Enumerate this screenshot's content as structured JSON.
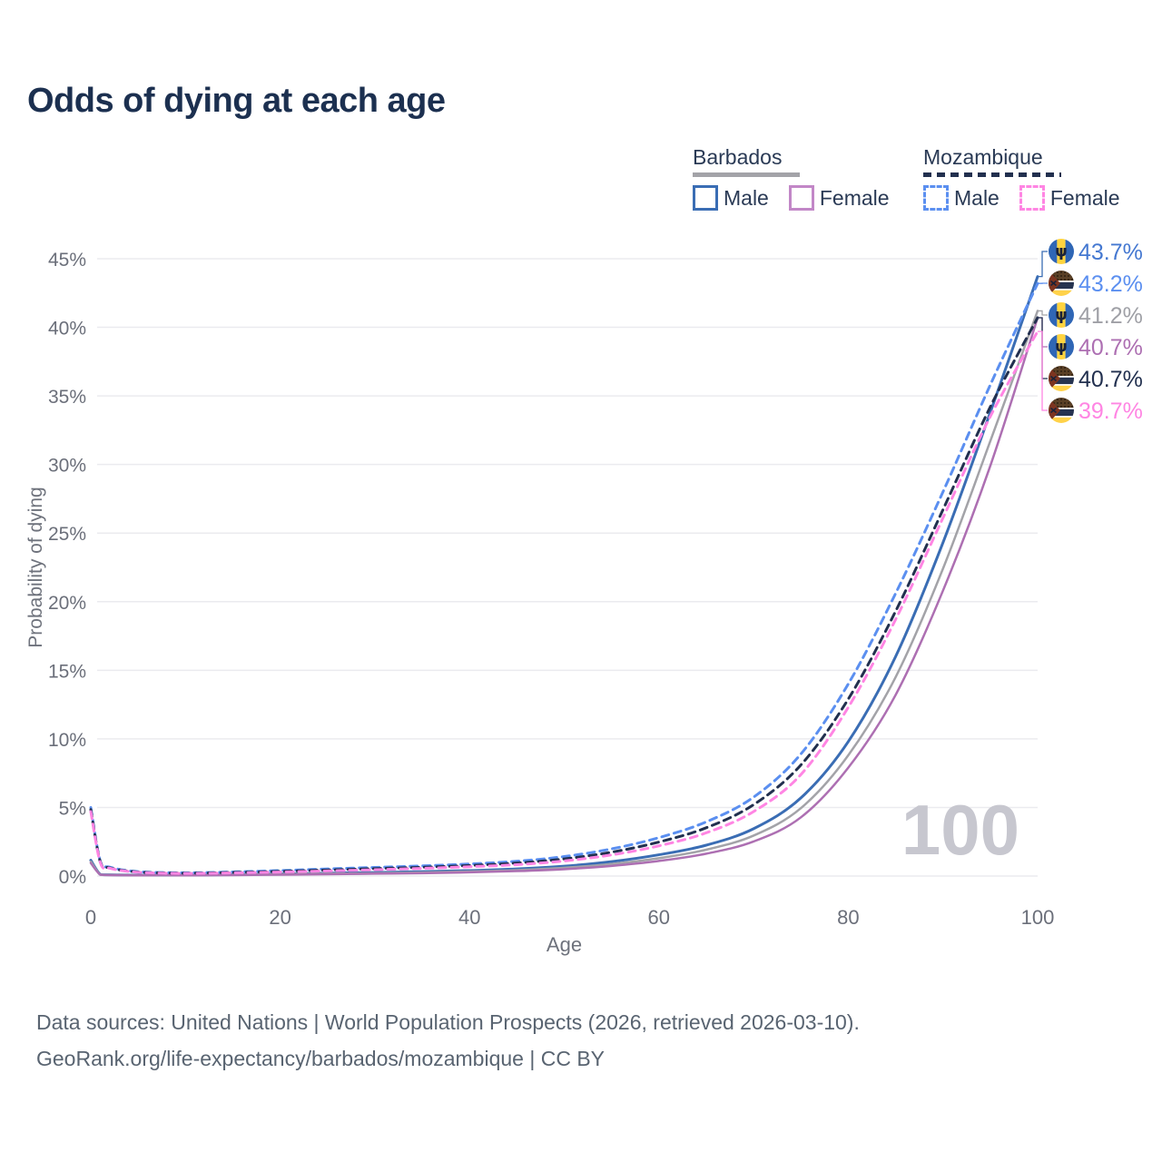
{
  "title": "Odds of dying at each age",
  "legend": {
    "groups": [
      {
        "name": "Barbados",
        "style": "solid",
        "underline_color": "#a3a3a8",
        "items": [
          {
            "label": "Male",
            "color": "#3a6db4"
          },
          {
            "label": "Female",
            "color": "#c287c7"
          }
        ]
      },
      {
        "name": "Mozambique",
        "style": "dashed",
        "underline_color": "#22304f",
        "items": [
          {
            "label": "Male",
            "color": "#5b8ff0"
          },
          {
            "label": "Female",
            "color": "#ff85e3"
          }
        ]
      }
    ]
  },
  "chart_data": {
    "type": "line",
    "xlabel": "Age",
    "ylabel": "Probability of dying",
    "x_ticks": [
      0,
      20,
      40,
      60,
      80,
      100
    ],
    "y_ticks": [
      0,
      5,
      10,
      15,
      20,
      25,
      30,
      35,
      40,
      45
    ],
    "xlim": [
      0,
      100
    ],
    "ylim": [
      0,
      47
    ],
    "grid": true,
    "hover_age_watermark": "100",
    "ages": [
      0,
      1,
      2,
      5,
      10,
      15,
      20,
      25,
      30,
      35,
      40,
      45,
      50,
      55,
      60,
      65,
      70,
      75,
      80,
      85,
      90,
      95,
      100
    ],
    "series": [
      {
        "name": "Barbados Male",
        "country": "barbados",
        "sex": "male",
        "color": "#3a6db4",
        "dashed": false,
        "width": 3,
        "values": [
          1.15,
          0.12,
          0.09,
          0.07,
          0.07,
          0.1,
          0.16,
          0.21,
          0.26,
          0.32,
          0.4,
          0.52,
          0.72,
          1.05,
          1.55,
          2.25,
          3.45,
          5.7,
          9.8,
          16.0,
          24.3,
          33.8,
          43.7
        ],
        "end_label": "43.7%",
        "end_label_color": "#4478d1",
        "label_row": 0
      },
      {
        "name": "Mozambique Male",
        "country": "mozambique",
        "sex": "male",
        "color": "#5b8ff0",
        "dashed": true,
        "width": 3,
        "values": [
          5.0,
          1.1,
          0.65,
          0.32,
          0.24,
          0.3,
          0.4,
          0.52,
          0.63,
          0.74,
          0.88,
          1.08,
          1.42,
          1.98,
          2.8,
          3.95,
          5.75,
          8.9,
          14.0,
          20.6,
          28.0,
          35.8,
          43.2
        ],
        "end_label": "43.2%",
        "end_label_color": "#5b8ff0",
        "label_row": 1
      },
      {
        "name": "Barbados",
        "country": "barbados",
        "sex": "both",
        "color": "#a3a3a8",
        "dashed": false,
        "width": 2.5,
        "values": [
          1.05,
          0.11,
          0.08,
          0.06,
          0.06,
          0.09,
          0.13,
          0.17,
          0.21,
          0.26,
          0.33,
          0.43,
          0.6,
          0.88,
          1.3,
          1.92,
          2.95,
          4.95,
          8.8,
          14.5,
          22.4,
          31.7,
          41.2
        ],
        "end_label": "41.2%",
        "end_label_color": "#9fa0a6",
        "label_row": 2
      },
      {
        "name": "Barbados Female",
        "country": "barbados",
        "sex": "female",
        "color": "#ad6fb2",
        "dashed": false,
        "width": 2.5,
        "values": [
          0.95,
          0.1,
          0.07,
          0.05,
          0.05,
          0.07,
          0.1,
          0.13,
          0.17,
          0.21,
          0.27,
          0.36,
          0.5,
          0.74,
          1.1,
          1.63,
          2.52,
          4.28,
          7.9,
          13.2,
          20.8,
          29.9,
          40.7
        ],
        "end_label": "40.7%",
        "end_label_color": "#ad6fb2",
        "label_row": 3
      },
      {
        "name": "Mozambique",
        "country": "mozambique",
        "sex": "both",
        "color": "#22304f",
        "dashed": true,
        "width": 3,
        "values": [
          4.85,
          1.05,
          0.6,
          0.29,
          0.21,
          0.26,
          0.34,
          0.44,
          0.54,
          0.64,
          0.77,
          0.95,
          1.25,
          1.74,
          2.48,
          3.52,
          5.2,
          8.1,
          12.9,
          19.3,
          26.7,
          34.2,
          40.7
        ],
        "end_label": "40.7%",
        "end_label_color": "#22304f",
        "label_row": 4
      },
      {
        "name": "Mozambique Female",
        "country": "mozambique",
        "sex": "female",
        "color": "#ff85e3",
        "dashed": true,
        "width": 3,
        "values": [
          4.7,
          1.0,
          0.57,
          0.27,
          0.19,
          0.23,
          0.29,
          0.37,
          0.46,
          0.56,
          0.68,
          0.83,
          1.1,
          1.54,
          2.2,
          3.15,
          4.7,
          7.4,
          12.3,
          18.7,
          26.1,
          33.5,
          39.7
        ],
        "end_label": "39.7%",
        "end_label_color": "#ff85e3",
        "label_row": 5
      }
    ]
  },
  "footer": {
    "line1": "Data sources: United Nations | World Population Prospects (2026, retrieved 2026-03-10).",
    "line2": "GeoRank.org/life-expectancy/barbados/mozambique | CC BY"
  }
}
